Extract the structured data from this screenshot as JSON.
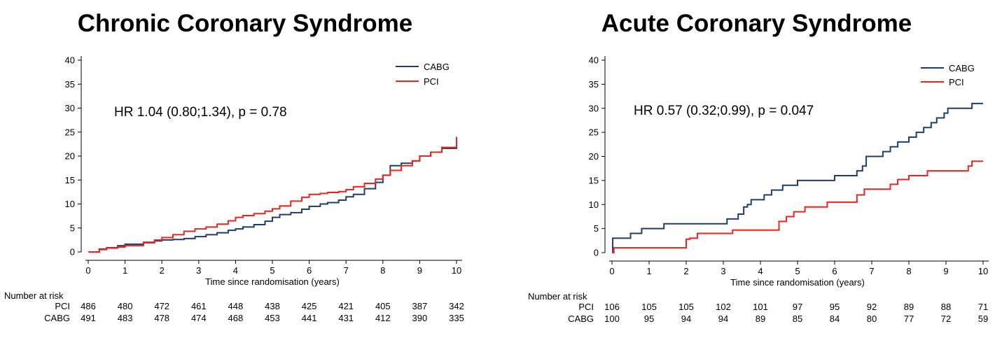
{
  "chart_data": [
    {
      "type": "line",
      "title": "Chronic Coronary Syndrome",
      "xlabel": "Time since randomisation (years)",
      "ylabel": "",
      "xlim": [
        0,
        10
      ],
      "ylim": [
        0,
        40
      ],
      "xticks": [
        0,
        1,
        2,
        3,
        4,
        5,
        6,
        7,
        8,
        9,
        10
      ],
      "yticks": [
        0,
        5,
        10,
        15,
        20,
        25,
        30,
        35,
        40
      ],
      "grid": false,
      "legend_position": "top-right",
      "annotation": "HR 1.04 (0.80;1.34), p = 0.78",
      "series": [
        {
          "name": "CABG",
          "color": "#1f3f66",
          "step": true,
          "x": [
            0,
            0.3,
            0.5,
            0.8,
            1.0,
            1.5,
            1.8,
            2.0,
            2.3,
            2.6,
            2.9,
            3.2,
            3.5,
            3.8,
            4.0,
            4.2,
            4.5,
            4.8,
            5.0,
            5.2,
            5.5,
            5.8,
            6.0,
            6.3,
            6.5,
            6.8,
            7.0,
            7.2,
            7.5,
            7.8,
            8.0,
            8.2,
            8.5,
            8.8,
            9.0,
            9.3,
            9.6,
            10.0
          ],
          "y": [
            0,
            0.6,
            0.9,
            1.3,
            1.6,
            2.0,
            2.3,
            2.5,
            2.6,
            2.8,
            3.2,
            3.6,
            4.0,
            4.5,
            4.8,
            5.2,
            5.7,
            6.4,
            7.2,
            7.8,
            8.2,
            8.9,
            9.5,
            10.0,
            10.3,
            10.8,
            11.5,
            12.0,
            13.2,
            14.5,
            16.0,
            18.0,
            18.5,
            19.0,
            20.0,
            20.8,
            21.6,
            23.3
          ]
        },
        {
          "name": "PCI",
          "color": "#e8251f",
          "step": true,
          "x": [
            0,
            0.3,
            0.5,
            0.8,
            1.0,
            1.5,
            1.8,
            2.0,
            2.3,
            2.6,
            2.9,
            3.2,
            3.5,
            3.8,
            4.0,
            4.2,
            4.5,
            4.8,
            5.0,
            5.2,
            5.5,
            5.8,
            6.0,
            6.3,
            6.5,
            6.8,
            7.0,
            7.2,
            7.5,
            7.8,
            8.0,
            8.2,
            8.5,
            8.8,
            9.0,
            9.3,
            9.6,
            10.0
          ],
          "y": [
            0,
            0.5,
            0.8,
            1.0,
            1.3,
            1.9,
            2.5,
            3.0,
            3.6,
            4.3,
            4.8,
            5.2,
            5.8,
            6.5,
            7.2,
            7.6,
            8.0,
            8.5,
            9.0,
            9.6,
            10.6,
            11.4,
            12.0,
            12.2,
            12.4,
            12.6,
            13.0,
            13.6,
            14.3,
            15.2,
            16.0,
            17.0,
            18.0,
            19.0,
            20.0,
            20.8,
            21.8,
            24.0
          ]
        }
      ],
      "risk_table": {
        "header": "Number at risk",
        "rows": [
          {
            "label": "PCI",
            "values": [
              486,
              480,
              472,
              461,
              448,
              438,
              425,
              421,
              405,
              387,
              342
            ]
          },
          {
            "label": "CABG",
            "values": [
              491,
              483,
              478,
              474,
              468,
              453,
              441,
              431,
              412,
              390,
              335
            ]
          }
        ]
      }
    },
    {
      "type": "line",
      "title": "Acute Coronary Syndrome",
      "xlabel": "Time since randomisation (years)",
      "ylabel": "",
      "xlim": [
        0,
        10
      ],
      "ylim": [
        0,
        40
      ],
      "xticks": [
        0,
        1,
        2,
        3,
        4,
        5,
        6,
        7,
        8,
        9,
        10
      ],
      "yticks": [
        0,
        5,
        10,
        15,
        20,
        25,
        30,
        35,
        40
      ],
      "grid": false,
      "legend_position": "top-right",
      "annotation": "HR 0.57 (0.32;0.99), p = 0.047",
      "series": [
        {
          "name": "CABG",
          "color": "#1f3f66",
          "step": true,
          "x": [
            0,
            0.02,
            0.5,
            0.8,
            1.4,
            3.1,
            3.4,
            3.55,
            3.65,
            3.75,
            4.1,
            4.3,
            4.6,
            5.0,
            6.0,
            6.6,
            6.75,
            6.85,
            7.3,
            7.5,
            7.7,
            8.0,
            8.2,
            8.4,
            8.6,
            8.75,
            8.95,
            9.05,
            9.7,
            10.0
          ],
          "y": [
            0,
            3,
            4,
            5,
            6,
            7,
            8,
            9.5,
            10,
            11,
            12,
            13,
            14,
            15,
            16,
            17,
            18,
            20,
            21,
            22,
            23,
            24,
            25,
            26,
            27,
            28,
            29,
            30,
            31,
            31
          ]
        },
        {
          "name": "PCI",
          "color": "#e8251f",
          "step": true,
          "x": [
            0,
            0.05,
            2.0,
            2.1,
            2.3,
            3.25,
            4.5,
            4.7,
            4.9,
            5.2,
            5.4,
            5.8,
            6.6,
            6.8,
            7.0,
            7.5,
            7.7,
            8.0,
            8.3,
            8.5,
            9.6,
            9.7,
            10.0
          ],
          "y": [
            0,
            1,
            2.8,
            3,
            4,
            4.7,
            6.5,
            7.5,
            8.5,
            9.5,
            9.5,
            10.5,
            12,
            13.2,
            13.2,
            14.2,
            15.2,
            16,
            16,
            17,
            18,
            19,
            19
          ]
        }
      ],
      "risk_table": {
        "header": "Number at risk",
        "rows": [
          {
            "label": "PCI",
            "values": [
              106,
              105,
              105,
              102,
              101,
              97,
              95,
              92,
              89,
              88,
              71
            ]
          },
          {
            "label": "CABG",
            "values": [
              100,
              95,
              94,
              94,
              89,
              85,
              84,
              80,
              77,
              72,
              59
            ]
          }
        ]
      }
    }
  ]
}
